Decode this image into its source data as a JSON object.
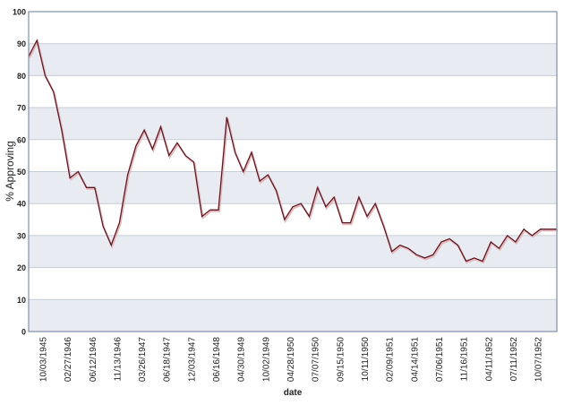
{
  "chart_data": {
    "type": "line",
    "title": "",
    "xlabel": "date",
    "ylabel": "% Approving",
    "ylim": [
      0,
      100
    ],
    "yticks": [
      0,
      10,
      20,
      30,
      40,
      50,
      60,
      70,
      80,
      90,
      100
    ],
    "grid": true,
    "xtick_labels": [
      "10/03/1945",
      "02/27/1946",
      "06/12/1946",
      "11/13/1946",
      "03/26/1947",
      "06/18/1947",
      "12/03/1947",
      "06/16/1948",
      "04/30/1949",
      "10/02/1949",
      "04/28/1950",
      "07/07/1950",
      "09/15/1950",
      "10/11/1950",
      "02/09/1951",
      "04/14/1951",
      "07/06/1951",
      "11/16/1951",
      "04/11/1952",
      "07/11/1952",
      "10/07/1952"
    ],
    "series": [
      {
        "name": "% Approving",
        "color": "#5a1a24",
        "values": [
          86,
          91,
          80,
          75,
          63,
          48,
          50,
          45,
          45,
          33,
          27,
          34,
          49,
          58,
          63,
          57,
          64,
          55,
          59,
          55,
          53,
          36,
          38,
          38,
          67,
          56,
          50,
          56,
          47,
          49,
          44,
          35,
          39,
          40,
          36,
          45,
          39,
          42,
          34,
          34,
          42,
          36,
          40,
          33,
          25,
          27,
          26,
          24,
          23,
          24,
          28,
          29,
          27,
          22,
          23,
          22,
          28,
          26,
          30,
          28,
          32,
          30,
          32,
          32,
          32
        ]
      }
    ]
  }
}
